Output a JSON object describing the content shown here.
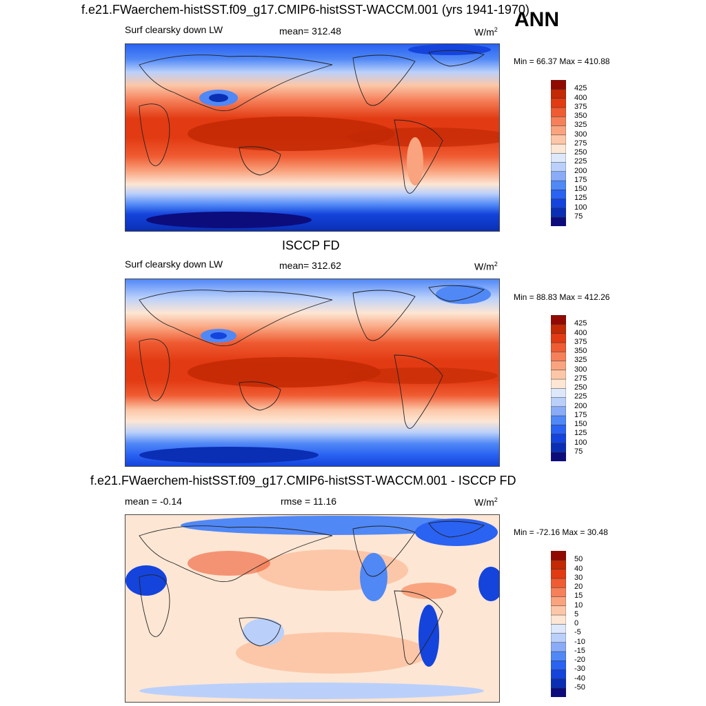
{
  "season": "ANN",
  "units": "W/m",
  "units_sup": "2",
  "panels": [
    {
      "title": "f.e21.FWaerchem-histSST.f09_g17.CMIP6-histSST-WACCM.001 (yrs 1941-1970)",
      "left_label": "Surf clearsky down LW",
      "center_label": "mean= 312.48",
      "minmax": "Min =  66.37 Max = 410.88",
      "colors": [
        "#0c0c7c",
        "#0a2fb4",
        "#1444dc",
        "#2a62f2",
        "#5088f6",
        "#8aacf8",
        "#bad0fb",
        "#dde8fb",
        "#fde6d4",
        "#fcc7a8",
        "#f9a47f",
        "#f5805a",
        "#ef5b32",
        "#e23a12",
        "#c22904",
        "#900a02"
      ],
      "ticks": [
        "425",
        "400",
        "375",
        "350",
        "325",
        "300",
        "275",
        "250",
        "225",
        "200",
        "175",
        "150",
        "125",
        "100",
        "75"
      ]
    },
    {
      "title": "ISCCP FD",
      "left_label": "Surf clearsky down LW",
      "center_label": "mean= 312.62",
      "minmax": "Min =  88.83 Max = 412.26",
      "colors": [
        "#0c0c7c",
        "#0a2fb4",
        "#1444dc",
        "#2a62f2",
        "#5088f6",
        "#8aacf8",
        "#bad0fb",
        "#dde8fb",
        "#fde6d4",
        "#fcc7a8",
        "#f9a47f",
        "#f5805a",
        "#ef5b32",
        "#e23a12",
        "#c22904",
        "#900a02"
      ],
      "ticks": [
        "425",
        "400",
        "375",
        "350",
        "325",
        "300",
        "275",
        "250",
        "225",
        "200",
        "175",
        "150",
        "125",
        "100",
        "75"
      ]
    },
    {
      "title": "f.e21.FWaerchem-histSST.f09_g17.CMIP6-histSST-WACCM.001 - ISCCP FD",
      "left_label": "mean =  -0.14",
      "center_label": "rmse =  11.16",
      "minmax": "Min = -72.16 Max =  30.48",
      "colors": [
        "#0c0c7c",
        "#0a2fb4",
        "#1444dc",
        "#2a62f2",
        "#5088f6",
        "#8aacf8",
        "#bad0fb",
        "#dde8fb",
        "#fde6d4",
        "#fcc7a8",
        "#f9a47f",
        "#f5805a",
        "#ef5b32",
        "#e23a12",
        "#c22904",
        "#900a02"
      ],
      "ticks": [
        "50",
        "40",
        "30",
        "20",
        "15",
        "10",
        "5",
        "0",
        "-5",
        "-10",
        "-15",
        "-20",
        "-30",
        "-40",
        "-50"
      ]
    }
  ]
}
